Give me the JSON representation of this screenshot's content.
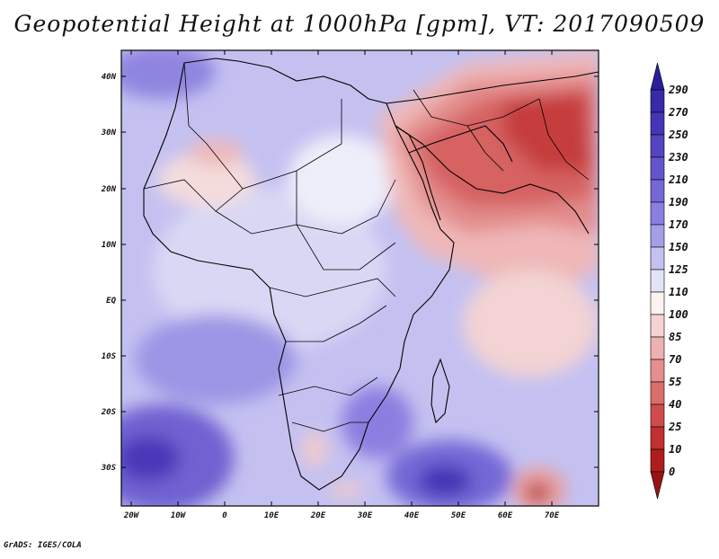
{
  "title": "Geopotential Height at 1000hPa [gpm], VT: 2017090509",
  "footer": "GrADS: IGES/COLA",
  "map": {
    "lon_ticks": [
      "20W",
      "10W",
      "0",
      "10E",
      "20E",
      "30E",
      "40E",
      "50E",
      "60E",
      "70E"
    ],
    "lat_ticks": [
      "40N",
      "30N",
      "20N",
      "10N",
      "EQ",
      "10S",
      "20S",
      "30S"
    ]
  },
  "colorbar": {
    "levels": [
      "290",
      "270",
      "250",
      "230",
      "210",
      "190",
      "170",
      "150",
      "125",
      "110",
      "100",
      "85",
      "70",
      "55",
      "40",
      "25",
      "10",
      "0"
    ],
    "colors": [
      "#2a1f9a",
      "#3729a8",
      "#4535b6",
      "#5444c2",
      "#6455cc",
      "#7567d6",
      "#8a7fe0",
      "#a59ee9",
      "#c4c1f1",
      "#e3e3f7",
      "#fdf3f3",
      "#f6d2d2",
      "#eeb1b1",
      "#e58f8f",
      "#db6d6d",
      "#d04c4c",
      "#c33030",
      "#b01d1d",
      "#9a1212"
    ]
  },
  "colors": {
    "frame": "#000000",
    "coast": "#000000"
  }
}
